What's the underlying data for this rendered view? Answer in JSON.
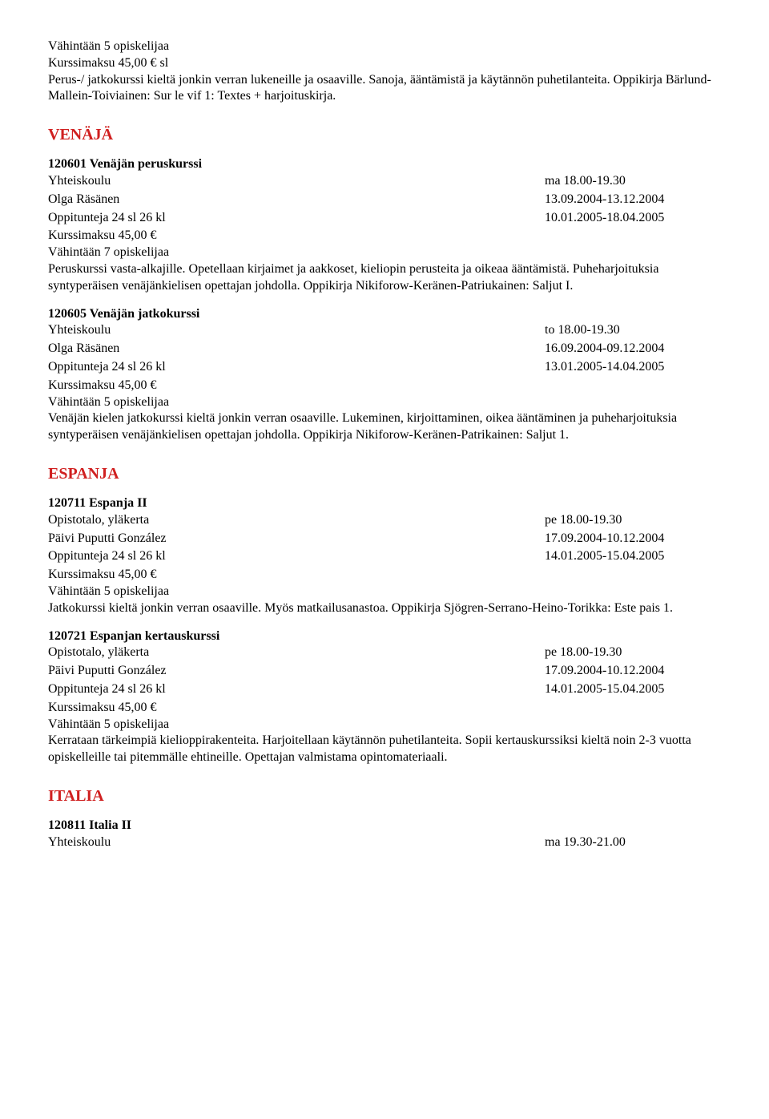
{
  "intro": {
    "min": "Vähintään 5 opiskelijaa",
    "fee": "Kurssimaksu   45,00 € sl",
    "desc": "Perus-/ jatkokurssi kieltä jonkin verran lukeneille ja osaaville. Sanoja, ääntämistä ja käytännön puhetilanteita. Oppikirja Bärlund-Mallein-Toiviainen: Sur le vif 1: Textes + harjoituskirja."
  },
  "venaja": {
    "heading": "VENÄJÄ",
    "c1": {
      "title": "120601   Venäjän peruskurssi",
      "loc_l": "Yhteiskoulu",
      "loc_r": "ma  18.00-19.30",
      "teacher_l": "Olga Räsänen",
      "teacher_r": "13.09.2004-13.12.2004",
      "lessons_l": "Oppitunteja  24 sl    26 kl",
      "lessons_r": "10.01.2005-18.04.2005",
      "fee": "Kurssimaksu   45,00 €",
      "min": "Vähintään 7 opiskelijaa",
      "desc": "Peruskurssi vasta-alkajille. Opetellaan kirjaimet ja aakkoset, kieliopin perusteita ja oikeaa ääntämistä. Puheharjoituksia syntyperäisen venäjänkielisen opettajan johdolla. Oppikirja Nikiforow-Keränen-Patriukainen: Saljut I."
    },
    "c2": {
      "title": "120605   Venäjän jatkokurssi",
      "loc_l": "Yhteiskoulu",
      "loc_r": "to   18.00-19.30",
      "teacher_l": "Olga Räsänen",
      "teacher_r": "16.09.2004-09.12.2004",
      "lessons_l": "Oppitunteja  24 sl    26 kl",
      "lessons_r": "13.01.2005-14.04.2005",
      "fee": "Kurssimaksu   45,00 €",
      "min": "Vähintään 5 opiskelijaa",
      "desc": "Venäjän kielen jatkokurssi kieltä jonkin verran osaaville. Lukeminen, kirjoittaminen, oikea ääntäminen ja puheharjoituksia syntyperäisen venäjänkielisen opettajan johdolla. Oppikirja Nikiforow-Keränen-Patrikainen: Saljut 1."
    }
  },
  "espanja": {
    "heading": "ESPANJA",
    "c1": {
      "title": "120711   Espanja II",
      "loc_l": "Opistotalo, yläkerta",
      "loc_r": "pe   18.00-19.30",
      "teacher_l": "Päivi Puputti González",
      "teacher_r": "17.09.2004-10.12.2004",
      "lessons_l": "Oppitunteja  24 sl    26 kl",
      "lessons_r": "14.01.2005-15.04.2005",
      "fee": "Kurssimaksu   45,00 €",
      "min": "Vähintään 5 opiskelijaa",
      "desc": "Jatkokurssi kieltä jonkin verran osaaville. Myös matkailusanastoa. Oppikirja Sjögren-Serrano-Heino-Torikka: Este pais 1."
    },
    "c2": {
      "title": "120721   Espanjan kertauskurssi",
      "loc_l": "Opistotalo, yläkerta",
      "loc_r": "pe   18.00-19.30",
      "teacher_l": "Päivi Puputti González",
      "teacher_r": "17.09.2004-10.12.2004",
      "lessons_l": "Oppitunteja  24 sl    26 kl",
      "lessons_r": "14.01.2005-15.04.2005",
      "fee": "Kurssimaksu   45,00 €",
      "min": "Vähintään 5 opiskelijaa",
      "desc": "Kerrataan tärkeimpiä kielioppirakenteita. Harjoitellaan käytännön puhetilanteita. Sopii kertauskurssiksi kieltä noin 2-3 vuotta opiskelleille tai pitemmälle ehtineille. Opettajan valmistama opintomateriaali."
    }
  },
  "italia": {
    "heading": "ITALIA",
    "c1": {
      "title": "120811   Italia II",
      "loc_l": "Yhteiskoulu",
      "loc_r": "ma  19.30-21.00"
    }
  }
}
